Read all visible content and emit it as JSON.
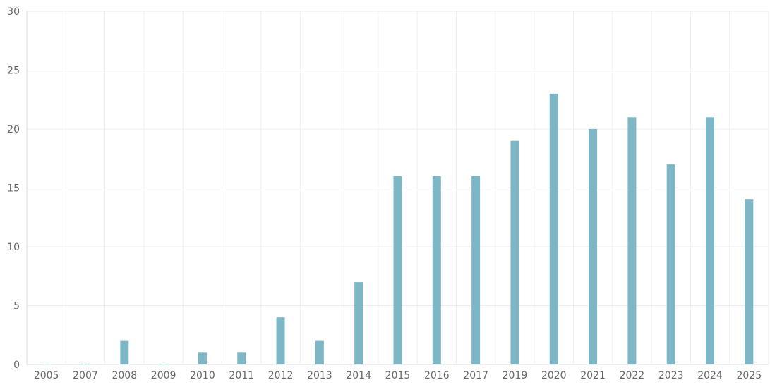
{
  "chart_data": {
    "type": "bar",
    "categories": [
      "2005",
      "2007",
      "2008",
      "2009",
      "2010",
      "2011",
      "2012",
      "2013",
      "2014",
      "2015",
      "2016",
      "2017",
      "2019",
      "2020",
      "2021",
      "2022",
      "2023",
      "2024",
      "2025"
    ],
    "values": [
      0,
      0,
      2,
      0,
      1,
      1,
      4,
      2,
      7,
      16,
      16,
      16,
      19,
      23,
      20,
      21,
      17,
      21,
      14
    ],
    "ylim": [
      0,
      30
    ],
    "yticks": [
      0,
      5,
      10,
      15,
      20,
      25,
      30
    ],
    "grid": true,
    "bar_color": "#7db7c6",
    "grid_color": "#eeeeee",
    "axis_line_color": "#dddddd",
    "label_color": "#666666"
  }
}
